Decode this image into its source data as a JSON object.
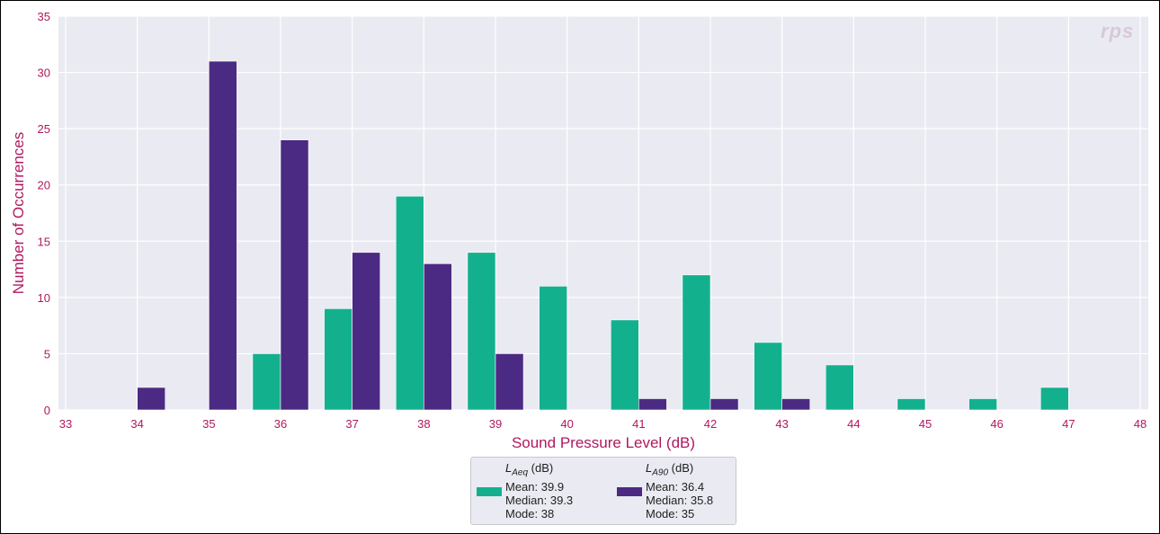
{
  "chart_data": {
    "type": "bar",
    "title": "",
    "xlabel": "Sound Pressure Level (dB)",
    "ylabel": "Number of Occurrences",
    "xlim": [
      33,
      48
    ],
    "ylim": [
      0,
      35
    ],
    "xticks": [
      "33",
      "34",
      "35",
      "36",
      "37",
      "38",
      "39",
      "40",
      "41",
      "42",
      "43",
      "44",
      "45",
      "46",
      "47",
      "48"
    ],
    "yticks": [
      "0",
      "5",
      "10",
      "15",
      "20",
      "25",
      "30",
      "35"
    ],
    "grid": true,
    "legend_position": "bottom-center",
    "series": [
      {
        "name": "LAeq (dB)",
        "color": "#13b08e",
        "x": [
          36,
          37,
          38,
          39,
          40,
          41,
          42,
          43,
          44,
          45,
          46,
          47
        ],
        "values": [
          5,
          9,
          19,
          14,
          11,
          8,
          12,
          6,
          4,
          1,
          1,
          2
        ]
      },
      {
        "name": "LA90 (dB)",
        "color": "#4b2a83",
        "x": [
          34,
          35,
          36,
          37,
          38,
          39,
          41,
          42,
          43
        ],
        "values": [
          2,
          31,
          24,
          14,
          13,
          5,
          1,
          1,
          1
        ]
      }
    ]
  },
  "legend": {
    "laeq": {
      "title_main": "L",
      "title_sub": "Aeq",
      "title_unit": " (dB)",
      "mean": "Mean: 39.9",
      "median": "Median: 39.3",
      "mode": "Mode: 38"
    },
    "la90": {
      "title_main": "L",
      "title_sub": "A90",
      "title_unit": " (dB)",
      "mean": "Mean: 36.4",
      "median": "Median: 35.8",
      "mode": "Mode: 35"
    }
  },
  "watermark": "rps",
  "colors": {
    "plot_bg": "#eaeaf2",
    "grid": "#ffffff",
    "axis_text": "#b0185e"
  }
}
